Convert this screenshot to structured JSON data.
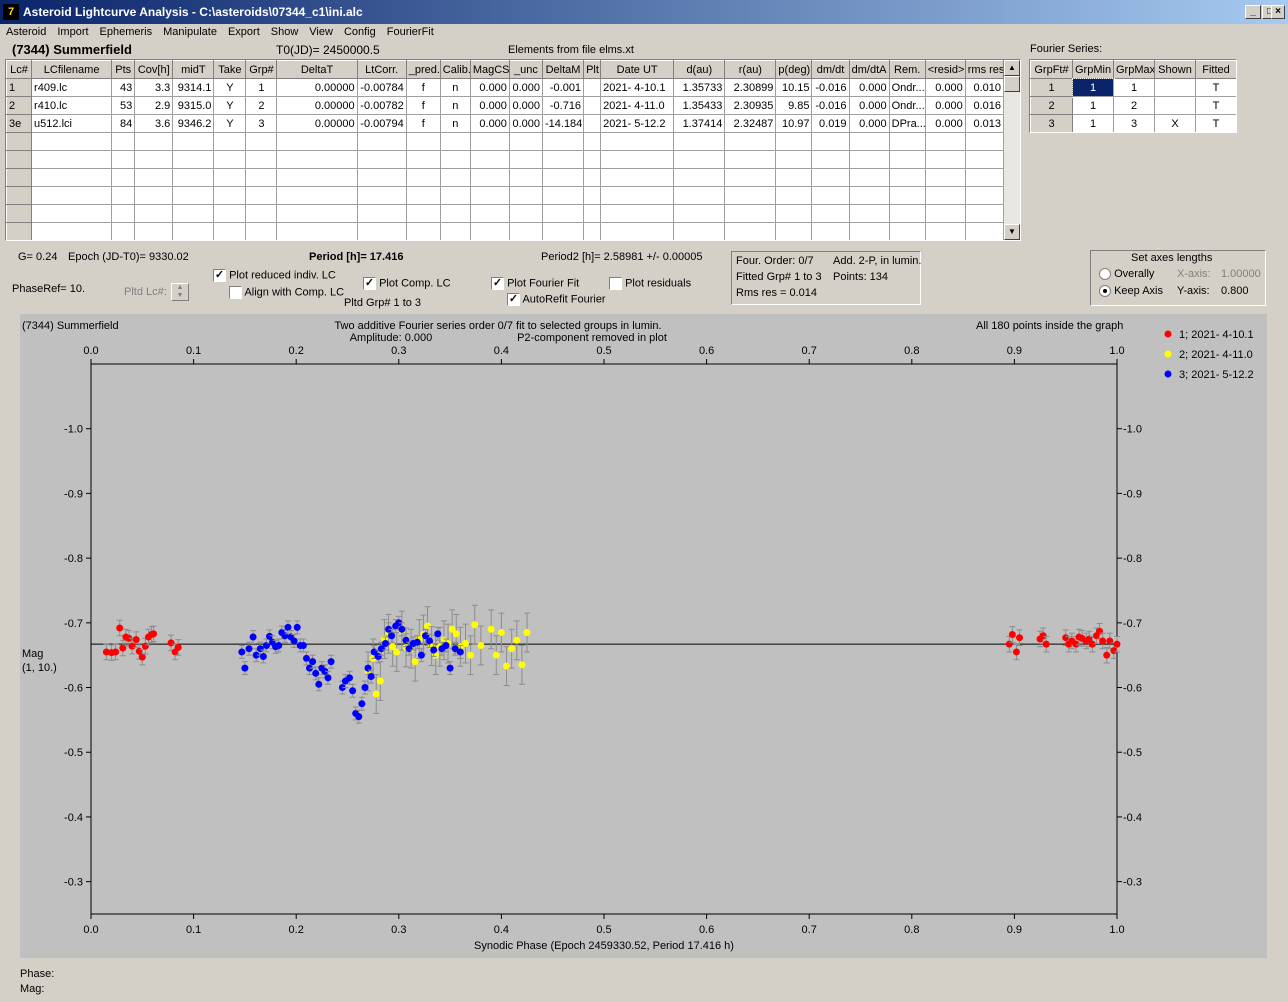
{
  "window": {
    "title": "Asteroid Lightcurve Analysis - C:\\asteroids\\07344_c1\\ini.alc",
    "min_label": "_",
    "max_label": "□",
    "close_label": "×"
  },
  "menu": [
    "Asteroid",
    "Import",
    "Ephemeris",
    "Manipulate",
    "Export",
    "Show",
    "View",
    "Config",
    "FourierFit"
  ],
  "header": {
    "asteroid": "(7344) Summerfield",
    "t0": "T0(JD)= 2450000.5",
    "elements": "Elements from file elms.xt"
  },
  "lc_table": {
    "columns": [
      "Lc#",
      "LCfilename",
      "Pts",
      "Cov[h]",
      "midT",
      "Take",
      "Grp#",
      "DeltaT",
      "LtCorr.",
      "_pred.",
      "Calib.",
      "MagCS",
      "_unc",
      "DeltaM",
      "Plt",
      "Date UT",
      "d(au)",
      "r(au)",
      "p(deg)",
      "dm/dt",
      "dm/dtA",
      "Rem.",
      "<resid>",
      "rms res"
    ],
    "rows": [
      [
        "1",
        "r409.lc",
        "43",
        "3.3",
        "9314.1",
        "Y",
        "1",
        "0.00000",
        "-0.00784",
        "f",
        "n",
        "0.000",
        "0.000",
        "-0.001",
        "",
        "2021- 4-10.1",
        "1.35733",
        "2.30899",
        "10.15",
        "-0.016",
        "0.000",
        "Ondr...",
        "0.000",
        "0.010"
      ],
      [
        "2",
        "r410.lc",
        "53",
        "2.9",
        "9315.0",
        "Y",
        "2",
        "0.00000",
        "-0.00782",
        "f",
        "n",
        "0.000",
        "0.000",
        "-0.716",
        "",
        "2021- 4-11.0",
        "1.35433",
        "2.30935",
        "9.85",
        "-0.016",
        "0.000",
        "Ondr...",
        "0.000",
        "0.016"
      ],
      [
        "3e",
        "u512.lci",
        "84",
        "3.6",
        "9346.2",
        "Y",
        "3",
        "0.00000",
        "-0.00794",
        "f",
        "n",
        "0.000",
        "0.000",
        "-14.184",
        "",
        "2021- 5-12.2",
        "1.37414",
        "2.32487",
        "10.97",
        "0.019",
        "0.000",
        "DPra...",
        "0.000",
        "0.013"
      ]
    ],
    "scroll_up": "▲",
    "scroll_down": "▼"
  },
  "fourier": {
    "title": "Fourier Series:",
    "columns": [
      "GrpFt#",
      "GrpMin",
      "GrpMax",
      "Shown",
      "Fitted"
    ],
    "rows": [
      [
        "1",
        "1",
        "1",
        "",
        "T"
      ],
      [
        "2",
        "1",
        "2",
        "",
        "T"
      ],
      [
        "3",
        "1",
        "3",
        "X",
        "T"
      ]
    ]
  },
  "info": {
    "g": "G= 0.24",
    "epoch": "Epoch (JD-T0)= 9330.02",
    "period": "Period [h]= 17.416",
    "period2": "Period2 [h]= 2.58981 +/- 0.00005",
    "phaseref": "PhaseRef= 10.",
    "pltd_lc": "Pltd Lc#:",
    "pltd_grp": "Pltd Grp#  1   to   3"
  },
  "options": {
    "plot_reduced": "Plot reduced indiv. LC",
    "align_comp": "Align with Comp. LC",
    "plot_comp": "Plot Comp. LC",
    "plot_fourier": "Plot Fourier Fit",
    "plot_residuals": "Plot residuals",
    "autorefit": "AutoRefit Fourier",
    "check_mark": "✓"
  },
  "fitbox": {
    "order": "Four. Order:  0/7",
    "add": "Add. 2-P, in lumin.",
    "fitted": "Fitted Grp# 1 to 3",
    "points": "Points: 134",
    "rms": "Rms res      = 0.014"
  },
  "axes_box": {
    "title": "Set axes lengths",
    "overally": "Overally",
    "keep": "Keep Axis",
    "x_label": "X-axis:",
    "x_value": "1.00000",
    "y_label": "Y-axis:",
    "y_value": "0.800"
  },
  "plot": {
    "name": "(7344) Summerfield",
    "subtitle1": "Two additive Fourier series order 0/7 fit to selected groups in lumin.",
    "subtitle2_a": "Amplitude: 0.000",
    "subtitle2_b": "P2-component removed in plot",
    "inside": "All 180 points inside the graph",
    "ylabel1": "Mag",
    "ylabel2": "(1, 10.)"
  },
  "status": {
    "phase": "Phase:",
    "mag": "Mag:"
  },
  "chart_data": {
    "type": "scatter",
    "xlabel": "Synodic Phase (Epoch 2459330.52, Period 17.416 h)",
    "ylabel": "Mag",
    "xlim": [
      0,
      1
    ],
    "ylim": [
      -1.1,
      -0.25
    ],
    "y_reversed": true,
    "xticks": [
      0.0,
      0.1,
      0.2,
      0.3,
      0.4,
      0.5,
      0.6,
      0.7,
      0.8,
      0.9,
      1.0
    ],
    "xtick_labels": [
      "0.0",
      "0.1",
      "0.2",
      "0.3",
      "0.4",
      "0.5",
      "0.6",
      "0.7",
      "0.8",
      "0.9",
      "1.0"
    ],
    "yticks": [
      -1.0,
      -0.9,
      -0.8,
      -0.7,
      -0.6,
      -0.5,
      -0.4,
      -0.3
    ],
    "ytick_labels": [
      "-1.0",
      "-0.9",
      "-0.8",
      "-0.7",
      "-0.6",
      "-0.5",
      "-0.4",
      "-0.3"
    ],
    "fit_line": -0.667,
    "legend_position": "top-right",
    "series": [
      {
        "name": "1; 2021- 4-10.1",
        "color": "#ff0000",
        "error": 0.012,
        "x": [
          0.015,
          0.02,
          0.024,
          0.028,
          0.031,
          0.034,
          0.037,
          0.04,
          0.044,
          0.047,
          0.05,
          0.053,
          0.056,
          0.059,
          0.061,
          0.078,
          0.082,
          0.085,
          0.895,
          0.898,
          0.902,
          0.905,
          0.925,
          0.928,
          0.931,
          0.95,
          0.953,
          0.956,
          0.96,
          0.963,
          0.966,
          0.97,
          0.973,
          0.976,
          0.98,
          0.983,
          0.986,
          0.99,
          0.993,
          0.997,
          1.0
        ],
        "y": [
          -0.655,
          -0.654,
          -0.655,
          -0.692,
          -0.661,
          -0.678,
          -0.676,
          -0.664,
          -0.674,
          -0.656,
          -0.647,
          -0.664,
          -0.678,
          -0.682,
          -0.683,
          -0.669,
          -0.655,
          -0.662,
          -0.667,
          -0.682,
          -0.655,
          -0.677,
          -0.675,
          -0.68,
          -0.667,
          -0.677,
          -0.667,
          -0.672,
          -0.667,
          -0.678,
          -0.676,
          -0.672,
          -0.675,
          -0.667,
          -0.68,
          -0.687,
          -0.672,
          -0.65,
          -0.672,
          -0.657,
          -0.667
        ]
      },
      {
        "name": "2; 2021- 4-11.0",
        "color": "#ffff00",
        "error": 0.03,
        "x": [
          0.27,
          0.275,
          0.278,
          0.282,
          0.286,
          0.29,
          0.294,
          0.298,
          0.303,
          0.307,
          0.312,
          0.316,
          0.32,
          0.324,
          0.328,
          0.332,
          0.336,
          0.34,
          0.344,
          0.348,
          0.352,
          0.356,
          0.36,
          0.365,
          0.37,
          0.374,
          0.38,
          0.39,
          0.395,
          0.4,
          0.405,
          0.41,
          0.415,
          0.42,
          0.425
        ],
        "y": [
          -0.625,
          -0.645,
          -0.59,
          -0.61,
          -0.675,
          -0.683,
          -0.663,
          -0.655,
          -0.688,
          -0.662,
          -0.66,
          -0.64,
          -0.675,
          -0.682,
          -0.695,
          -0.664,
          -0.65,
          -0.663,
          -0.673,
          -0.668,
          -0.69,
          -0.683,
          -0.663,
          -0.668,
          -0.65,
          -0.697,
          -0.665,
          -0.69,
          -0.65,
          -0.685,
          -0.633,
          -0.66,
          -0.673,
          -0.635,
          -0.685
        ]
      },
      {
        "name": "3; 2021- 5-12.2",
        "color": "#0000ff",
        "error": 0.01,
        "x": [
          0.147,
          0.15,
          0.154,
          0.158,
          0.161,
          0.165,
          0.168,
          0.171,
          0.174,
          0.177,
          0.18,
          0.183,
          0.186,
          0.189,
          0.192,
          0.195,
          0.198,
          0.201,
          0.204,
          0.207,
          0.21,
          0.213,
          0.216,
          0.219,
          0.222,
          0.225,
          0.228,
          0.231,
          0.234,
          0.245,
          0.248,
          0.252,
          0.255,
          0.258,
          0.261,
          0.264,
          0.267,
          0.27,
          0.273,
          0.276,
          0.28,
          0.283,
          0.287,
          0.29,
          0.293,
          0.297,
          0.3,
          0.303,
          0.307,
          0.31,
          0.314,
          0.318,
          0.322,
          0.326,
          0.33,
          0.334,
          0.338,
          0.342,
          0.346,
          0.35,
          0.355,
          0.36
        ],
        "y": [
          -0.655,
          -0.63,
          -0.66,
          -0.678,
          -0.65,
          -0.66,
          -0.648,
          -0.665,
          -0.679,
          -0.67,
          -0.663,
          -0.665,
          -0.685,
          -0.68,
          -0.693,
          -0.678,
          -0.672,
          -0.693,
          -0.665,
          -0.665,
          -0.645,
          -0.63,
          -0.64,
          -0.622,
          -0.605,
          -0.63,
          -0.625,
          -0.615,
          -0.64,
          -0.6,
          -0.61,
          -0.615,
          -0.595,
          -0.56,
          -0.555,
          -0.575,
          -0.6,
          -0.63,
          -0.617,
          -0.655,
          -0.648,
          -0.66,
          -0.668,
          -0.69,
          -0.68,
          -0.695,
          -0.7,
          -0.69,
          -0.673,
          -0.66,
          -0.668,
          -0.67,
          -0.65,
          -0.68,
          -0.672,
          -0.658,
          -0.683,
          -0.66,
          -0.665,
          -0.63,
          -0.66,
          -0.655
        ]
      }
    ]
  }
}
